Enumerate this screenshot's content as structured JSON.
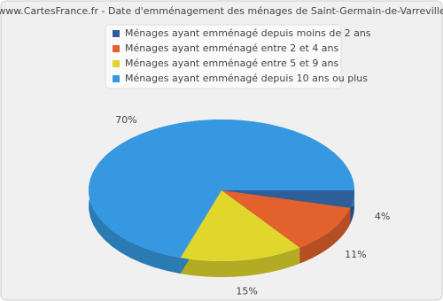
{
  "chart_data": {
    "type": "pie",
    "title": "www.CartesFrance.fr - Date d'emménagement des ménages de Saint-Germain-de-Varreville",
    "categories": [
      "Ménages ayant emménagé depuis moins de 2 ans",
      "Ménages ayant emménagé entre 2 et 4 ans",
      "Ménages ayant emménagé entre 5 et 9 ans",
      "Ménages ayant emménagé depuis 10 ans ou plus"
    ],
    "values": [
      4,
      11,
      15,
      70
    ],
    "value_labels": [
      "4%",
      "11%",
      "15%",
      "70%"
    ],
    "colors": [
      "#2f5e99",
      "#e2612c",
      "#e0d62c",
      "#3598e0"
    ]
  }
}
